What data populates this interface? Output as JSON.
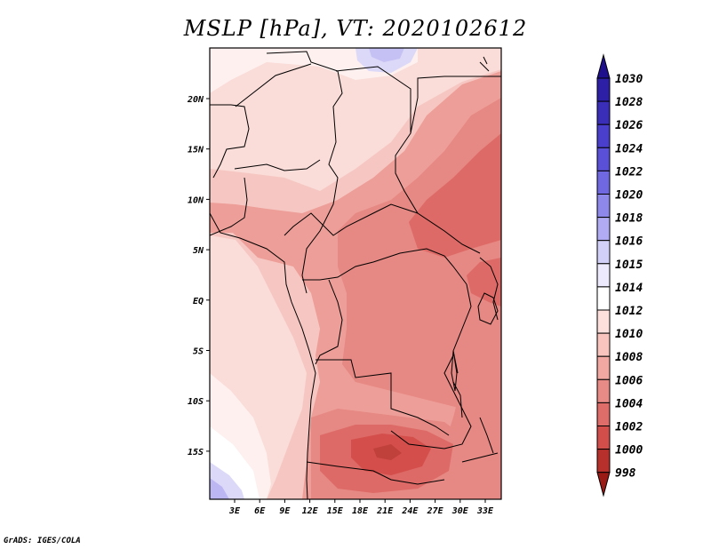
{
  "title": "MSLP [hPa], VT: 2020102612",
  "footer": "GrADS: IGES/COLA",
  "map": {
    "lon_labels": [
      "3E",
      "6E",
      "9E",
      "12E",
      "15E",
      "18E",
      "21E",
      "24E",
      "27E",
      "30E",
      "33E"
    ],
    "lat_labels": [
      "20N",
      "15N",
      "10N",
      "5N",
      "EQ",
      "5S",
      "10S",
      "15S"
    ]
  },
  "colorbar": {
    "levels": [
      "1030",
      "1028",
      "1026",
      "1024",
      "1022",
      "1020",
      "1018",
      "1016",
      "1015",
      "1014",
      "1012",
      "1010",
      "1008",
      "1006",
      "1004",
      "1002",
      "1000",
      "998"
    ],
    "colors": [
      "#1e0f8c",
      "#2d1fa6",
      "#3a2db8",
      "#4a3fcc",
      "#5a50d8",
      "#7068e0",
      "#8e88ea",
      "#b0abf2",
      "#d2cff8",
      "#eceafc",
      "#ffffff",
      "#fde0dc",
      "#f9c4be",
      "#f2a8a2",
      "#e88a86",
      "#de6c68",
      "#d24e4a",
      "#b8302c",
      "#9a1a16"
    ],
    "colors_note": ""
  },
  "fills": {
    "c1010": "#f6c7c2",
    "c1008": "#ee9e98",
    "c1006": "#e68883",
    "c1004": "#dd6a66",
    "c1002": "#d44f4b",
    "c1012": "#fadcd8",
    "c1014": "#fdf0ee",
    "c1015": "#ffffff",
    "c1016": "#dcd9f8",
    "c1018": "#bcb6f2"
  }
}
